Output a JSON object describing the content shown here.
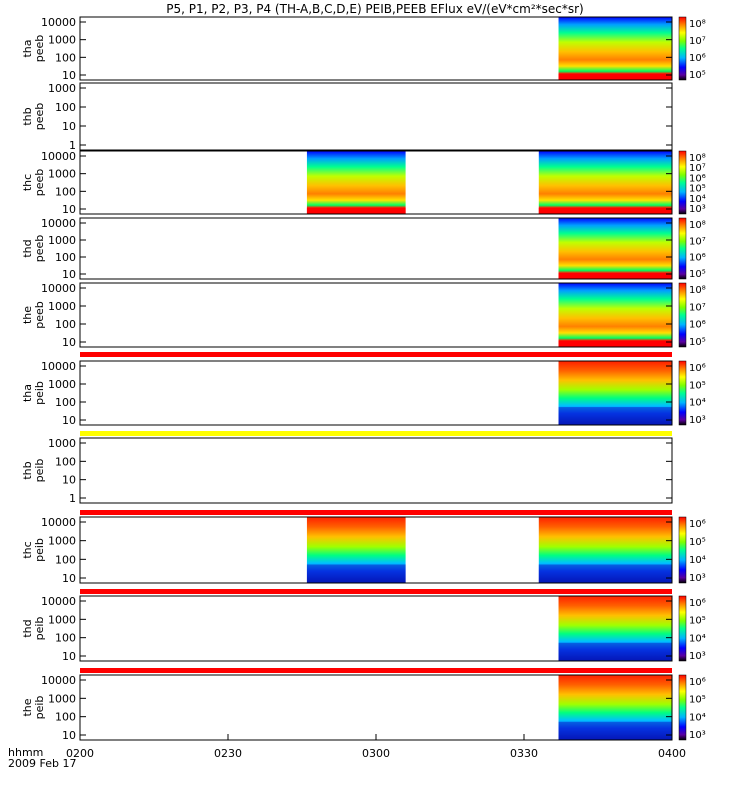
{
  "chart_data": {
    "type": "heatmap",
    "title": "P5, P1, P2, P3, P4 (TH-A,B,C,D,E) PEIB,PEEB EFlux eV/(eV*cm²*sec*sr)",
    "x_axis": {
      "ticks": [
        "0200",
        "0230",
        "0300",
        "0330",
        "0400"
      ],
      "label": "hhmm",
      "date_label": "2009 Feb 17",
      "range": [
        "02:00",
        "04:00"
      ]
    },
    "y_scale": "log",
    "panels": [
      {
        "id": "tha-peeb",
        "label": [
          "tha",
          "peeb"
        ],
        "yticks": [
          "10000",
          "1000",
          "100",
          "10"
        ],
        "coverage": [
          [
            "03:37",
            "04:00"
          ]
        ],
        "colorbar": [
          "10⁸",
          "10⁷",
          "10⁶",
          "10⁵"
        ],
        "species": "electron"
      },
      {
        "id": "thb-peeb",
        "label": [
          "thb",
          "peeb"
        ],
        "yticks": [
          "1000",
          "100",
          "10",
          "1"
        ],
        "coverage": [],
        "colorbar": null,
        "species": "electron"
      },
      {
        "id": "thc-peeb",
        "label": [
          "thc",
          "peeb"
        ],
        "yticks": [
          "10000",
          "1000",
          "100",
          "10"
        ],
        "coverage": [
          [
            "02:46",
            "03:06"
          ],
          [
            "03:33",
            "04:00"
          ]
        ],
        "colorbar": [
          "10⁸",
          "10⁷",
          "10⁶",
          "10⁵",
          "10⁴",
          "10³"
        ],
        "species": "electron"
      },
      {
        "id": "thd-peeb",
        "label": [
          "thd",
          "peeb"
        ],
        "yticks": [
          "10000",
          "1000",
          "100",
          "10"
        ],
        "coverage": [
          [
            "03:37",
            "04:00"
          ]
        ],
        "colorbar": [
          "10⁸",
          "10⁷",
          "10⁶",
          "10⁵"
        ],
        "species": "electron"
      },
      {
        "id": "the-peeb",
        "label": [
          "the",
          "peeb"
        ],
        "yticks": [
          "10000",
          "1000",
          "100",
          "10"
        ],
        "coverage": [
          [
            "03:37",
            "04:00"
          ]
        ],
        "colorbar": [
          "10⁸",
          "10⁷",
          "10⁶",
          "10⁵"
        ],
        "species": "electron"
      },
      {
        "id": "tha-peib",
        "label": [
          "tha",
          "peib"
        ],
        "yticks": [
          "10000",
          "1000",
          "100",
          "10"
        ],
        "coverage": [
          [
            "03:37",
            "04:00"
          ]
        ],
        "colorbar": [
          "10⁶",
          "10⁵",
          "10⁴",
          "10³"
        ],
        "species": "ion"
      },
      {
        "id": "thb-peib",
        "label": [
          "thb",
          "peib"
        ],
        "yticks": [
          "1000",
          "100",
          "10",
          "1"
        ],
        "coverage": [],
        "colorbar": null,
        "species": "ion"
      },
      {
        "id": "thc-peib",
        "label": [
          "thc",
          "peib"
        ],
        "yticks": [
          "10000",
          "1000",
          "100",
          "10"
        ],
        "coverage": [
          [
            "02:46",
            "03:06"
          ],
          [
            "03:33",
            "04:00"
          ]
        ],
        "colorbar": [
          "10⁶",
          "10⁵",
          "10⁴",
          "10³"
        ],
        "species": "ion"
      },
      {
        "id": "thd-peib",
        "label": [
          "thd",
          "peib"
        ],
        "yticks": [
          "10000",
          "1000",
          "100",
          "10"
        ],
        "coverage": [
          [
            "03:37",
            "04:00"
          ]
        ],
        "colorbar": [
          "10⁶",
          "10⁵",
          "10⁴",
          "10³"
        ],
        "species": "ion"
      },
      {
        "id": "the-peib",
        "label": [
          "the",
          "peib"
        ],
        "yticks": [
          "10000",
          "1000",
          "100",
          "10"
        ],
        "coverage": [
          [
            "03:37",
            "04:00"
          ]
        ],
        "colorbar": [
          "10⁶",
          "10⁵",
          "10⁴",
          "10³"
        ],
        "species": "ion"
      }
    ],
    "separator_bars": [
      {
        "after_panel": "the-peeb",
        "color": "#ff0000"
      },
      {
        "after_panel": "tha-peib",
        "color": "#ffff00"
      },
      {
        "after_panel": "thb-peib",
        "color": "#ff0000"
      },
      {
        "after_panel": "thc-peib",
        "color": "#ff0000"
      },
      {
        "after_panel": "thd-peib",
        "color": "#ff0000"
      }
    ]
  }
}
